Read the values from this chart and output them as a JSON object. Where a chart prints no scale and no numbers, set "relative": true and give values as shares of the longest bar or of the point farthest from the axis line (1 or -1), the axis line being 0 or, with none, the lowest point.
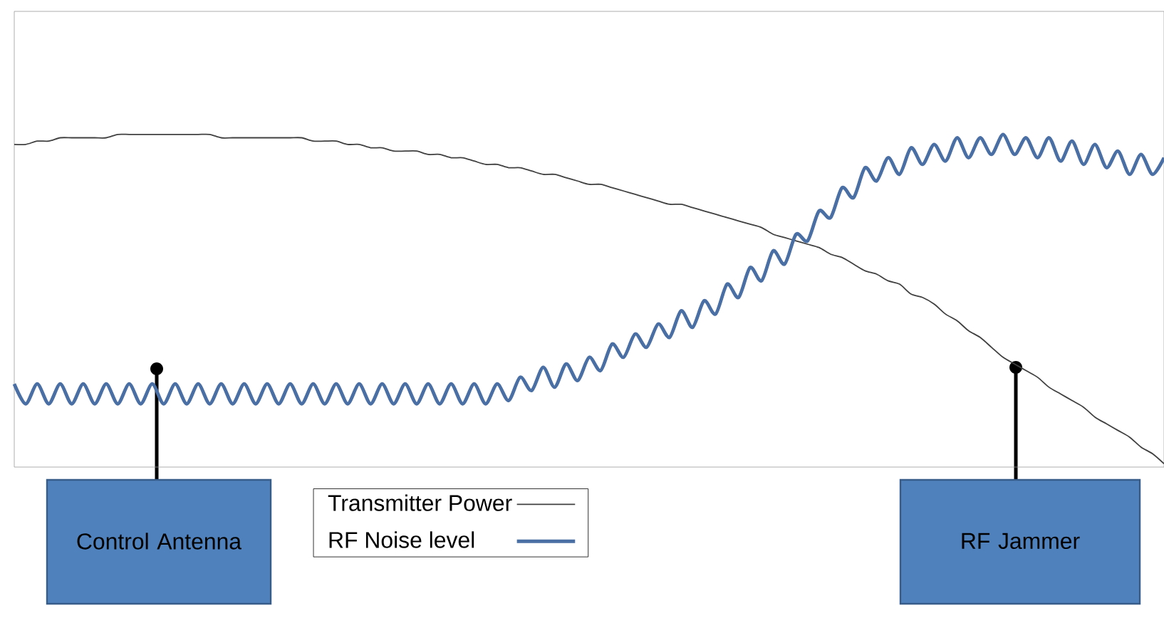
{
  "chart_data": {
    "type": "line",
    "relative": true,
    "legend": "bottom",
    "categories": [
      null,
      null,
      null,
      null,
      null,
      null,
      null,
      null,
      null,
      null,
      null,
      null,
      null,
      null,
      null,
      null,
      null,
      null,
      null,
      null,
      null,
      null,
      null,
      null,
      null,
      null,
      null,
      null,
      null,
      null,
      null,
      null,
      null,
      null,
      null,
      null,
      null,
      null,
      null,
      null,
      null,
      null,
      null,
      null,
      null,
      null,
      null,
      null,
      null,
      null,
      null,
      null,
      null,
      null,
      null,
      null,
      null,
      null,
      null,
      null,
      null,
      null,
      null,
      null,
      null,
      null,
      null,
      null,
      null,
      null,
      null,
      null,
      null,
      null,
      null,
      null,
      null,
      null,
      null,
      null,
      null,
      null,
      null,
      null,
      null,
      null,
      null,
      null,
      null,
      null,
      null,
      null,
      null,
      null,
      null,
      null,
      null,
      null,
      null,
      null,
      null
    ],
    "series": [
      {
        "name": "Transmitter Power",
        "color": "#404040",
        "values": [
          0.97,
          0.97,
          0.98,
          0.98,
          0.99,
          0.99,
          0.99,
          0.99,
          0.99,
          1,
          1,
          1,
          1,
          1,
          1,
          1,
          1,
          1,
          0.99,
          0.99,
          0.99,
          0.99,
          0.99,
          0.99,
          0.99,
          0.99,
          0.98,
          0.98,
          0.98,
          0.97,
          0.97,
          0.96,
          0.96,
          0.95,
          0.95,
          0.95,
          0.94,
          0.94,
          0.93,
          0.93,
          0.92,
          0.91,
          0.91,
          0.9,
          0.9,
          0.89,
          0.88,
          0.88,
          0.87,
          0.86,
          0.85,
          0.85,
          0.84,
          0.83,
          0.82,
          0.81,
          0.8,
          0.79,
          0.79,
          0.78,
          0.77,
          0.76,
          0.75,
          0.74,
          0.73,
          0.72,
          0.7,
          0.69,
          0.68,
          0.67,
          0.66,
          0.64,
          0.63,
          0.61,
          0.59,
          0.58,
          0.56,
          0.55,
          0.52,
          0.51,
          0.49,
          0.46,
          0.44,
          0.41,
          0.39,
          0.36,
          0.33,
          0.31,
          0.29,
          0.27,
          0.24,
          0.22,
          0.2,
          0.18,
          0.15,
          0.13,
          0.11,
          0.09,
          0.06,
          0.04,
          0.01
        ]
      },
      {
        "name": "RF Noise level",
        "color": "#4a6fa5",
        "values": [
          0.25,
          0.19,
          0.25,
          0.19,
          0.25,
          0.19,
          0.25,
          0.19,
          0.25,
          0.19,
          0.25,
          0.19,
          0.25,
          0.19,
          0.25,
          0.19,
          0.25,
          0.19,
          0.25,
          0.19,
          0.25,
          0.19,
          0.25,
          0.19,
          0.25,
          0.19,
          0.25,
          0.19,
          0.25,
          0.19,
          0.25,
          0.19,
          0.25,
          0.19,
          0.25,
          0.19,
          0.25,
          0.19,
          0.25,
          0.19,
          0.25,
          0.19,
          0.25,
          0.2,
          0.27,
          0.23,
          0.3,
          0.24,
          0.31,
          0.26,
          0.33,
          0.29,
          0.37,
          0.33,
          0.4,
          0.36,
          0.43,
          0.39,
          0.47,
          0.42,
          0.5,
          0.46,
          0.55,
          0.51,
          0.6,
          0.56,
          0.65,
          0.61,
          0.7,
          0.68,
          0.77,
          0.75,
          0.84,
          0.81,
          0.9,
          0.86,
          0.93,
          0.88,
          0.96,
          0.91,
          0.97,
          0.92,
          0.99,
          0.93,
          0.99,
          0.94,
          1,
          0.94,
          0.99,
          0.93,
          0.99,
          0.92,
          0.98,
          0.91,
          0.97,
          0.9,
          0.95,
          0.88,
          0.94,
          0.88,
          0.93
        ]
      }
    ],
    "annotations": [
      "Control Antenna",
      "RF Jammer"
    ]
  }
}
